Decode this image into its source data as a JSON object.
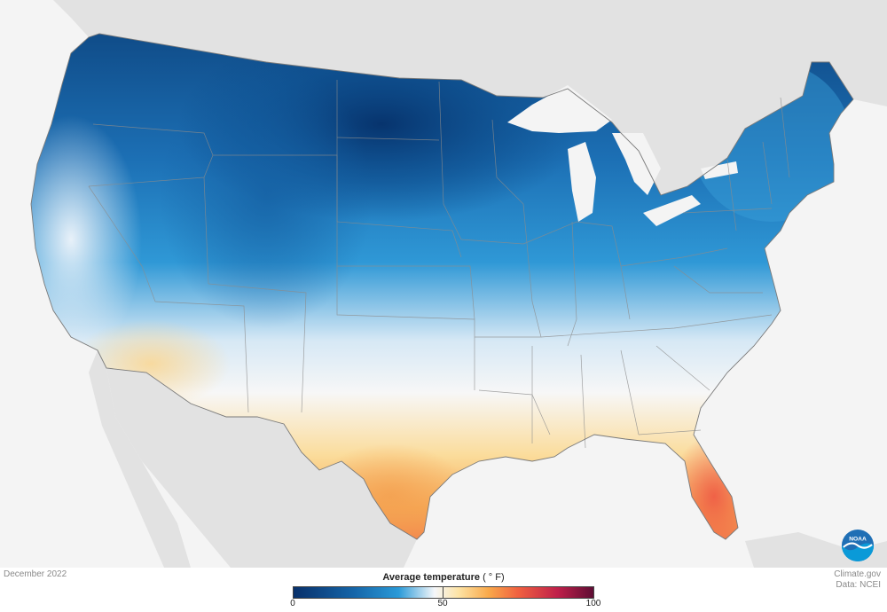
{
  "map": {
    "region": "Contiguous United States",
    "date_label": "December 2022",
    "legend": {
      "title": "Average temperature",
      "unit": "( ° F)",
      "min": 0,
      "mid": 50,
      "max": 100,
      "ticks": [
        "0",
        "50",
        "100"
      ],
      "color_stops": [
        {
          "value": 0,
          "color": "#08306b"
        },
        {
          "value": 20,
          "color": "#1565a8"
        },
        {
          "value": 35,
          "color": "#2a9ad8"
        },
        {
          "value": 47,
          "color": "#f5f7fa"
        },
        {
          "value": 55,
          "color": "#fde3a5"
        },
        {
          "value": 65,
          "color": "#f9a94a"
        },
        {
          "value": 75,
          "color": "#f06040"
        },
        {
          "value": 88,
          "color": "#c0204a"
        },
        {
          "value": 100,
          "color": "#5e0d34"
        }
      ]
    },
    "colors": {
      "background": "#f4f4f4",
      "neighbor_land": "#e2e2e2",
      "state_borders": "#8c8c8c",
      "great_lakes": "#f4f4f4"
    },
    "regional_pattern": {
      "northern_plains": "coldest, deep navy",
      "rockies_northwest_northeast": "blue",
      "southwest_southeast": "white to pale yellow",
      "gulf_coast_south_texas": "orange",
      "south_florida": "red-orange"
    }
  },
  "credits": {
    "site": "Climate.gov",
    "data_source": "Data: NCEI",
    "logo_text": "NOAA"
  }
}
